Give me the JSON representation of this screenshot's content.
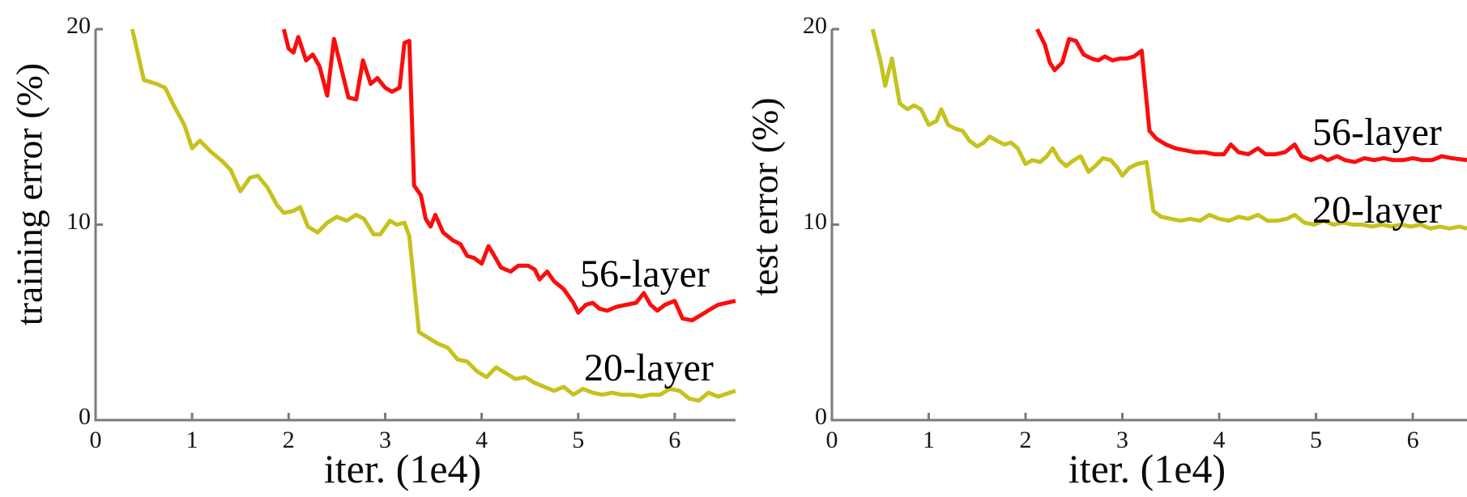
{
  "figure": {
    "background": "#ffffff"
  },
  "colors": {
    "axis": "#7b7b7b",
    "tick_label": "#14141c",
    "annotation": "#000000",
    "series_56_layer": "#fb0d0d",
    "series_20_layer": "#c6c21e"
  },
  "chart_data": [
    {
      "id": "training-error",
      "type": "line",
      "title": "",
      "xlabel": "iter. (1e4)",
      "ylabel": "training error (%)",
      "xlim": [
        0,
        6.63
      ],
      "ylim": [
        0,
        20
      ],
      "x_ticks": [
        0,
        1,
        2,
        3,
        4,
        5,
        6
      ],
      "x_tick_labels": [
        "0",
        "1",
        "2",
        "3",
        "4",
        "5",
        "6"
      ],
      "y_ticks": [
        0,
        10,
        20
      ],
      "y_tick_labels": [
        "0",
        "10",
        "20"
      ],
      "grid": false,
      "legend_position": "inline-annotations",
      "series": [
        {
          "name": "56-layer",
          "color": "#fb0d0d",
          "points": [
            [
              1.95,
              20
            ],
            [
              2.0,
              19.0
            ],
            [
              2.05,
              18.8
            ],
            [
              2.1,
              19.6
            ],
            [
              2.18,
              18.4
            ],
            [
              2.25,
              18.7
            ],
            [
              2.32,
              18.1
            ],
            [
              2.4,
              16.6
            ],
            [
              2.47,
              19.5
            ],
            [
              2.55,
              17.9
            ],
            [
              2.62,
              16.5
            ],
            [
              2.7,
              16.4
            ],
            [
              2.77,
              18.4
            ],
            [
              2.85,
              17.2
            ],
            [
              2.92,
              17.5
            ],
            [
              3.0,
              17.0
            ],
            [
              3.07,
              16.8
            ],
            [
              3.15,
              17.0
            ],
            [
              3.2,
              19.3
            ],
            [
              3.25,
              19.4
            ],
            [
              3.3,
              12.0
            ],
            [
              3.37,
              11.5
            ],
            [
              3.42,
              10.3
            ],
            [
              3.47,
              9.9
            ],
            [
              3.52,
              10.5
            ],
            [
              3.6,
              9.6
            ],
            [
              3.7,
              9.2
            ],
            [
              3.78,
              9.0
            ],
            [
              3.85,
              8.4
            ],
            [
              3.92,
              8.3
            ],
            [
              4.0,
              8.0
            ],
            [
              4.07,
              8.9
            ],
            [
              4.12,
              8.5
            ],
            [
              4.2,
              7.8
            ],
            [
              4.3,
              7.6
            ],
            [
              4.38,
              7.9
            ],
            [
              4.48,
              7.9
            ],
            [
              4.55,
              7.7
            ],
            [
              4.6,
              7.2
            ],
            [
              4.68,
              7.6
            ],
            [
              4.75,
              7.1
            ],
            [
              4.85,
              6.7
            ],
            [
              4.95,
              6.0
            ],
            [
              5.0,
              5.5
            ],
            [
              5.08,
              5.9
            ],
            [
              5.15,
              6.0
            ],
            [
              5.22,
              5.7
            ],
            [
              5.3,
              5.6
            ],
            [
              5.4,
              5.8
            ],
            [
              5.5,
              5.9
            ],
            [
              5.6,
              6.0
            ],
            [
              5.68,
              6.5
            ],
            [
              5.75,
              5.9
            ],
            [
              5.82,
              5.6
            ],
            [
              5.9,
              5.9
            ],
            [
              6.0,
              6.1
            ],
            [
              6.08,
              5.2
            ],
            [
              6.18,
              5.1
            ],
            [
              6.28,
              5.4
            ],
            [
              6.38,
              5.7
            ],
            [
              6.45,
              5.9
            ],
            [
              6.63,
              6.1
            ]
          ]
        },
        {
          "name": "20-layer",
          "color": "#c6c21e",
          "points": [
            [
              0.38,
              20
            ],
            [
              0.5,
              17.4
            ],
            [
              0.63,
              17.2
            ],
            [
              0.72,
              17.0
            ],
            [
              0.82,
              16.0
            ],
            [
              0.92,
              15.1
            ],
            [
              1.0,
              13.9
            ],
            [
              1.08,
              14.3
            ],
            [
              1.2,
              13.7
            ],
            [
              1.3,
              13.3
            ],
            [
              1.4,
              12.8
            ],
            [
              1.5,
              11.7
            ],
            [
              1.6,
              12.4
            ],
            [
              1.68,
              12.5
            ],
            [
              1.78,
              11.9
            ],
            [
              1.88,
              11.0
            ],
            [
              1.95,
              10.6
            ],
            [
              2.05,
              10.7
            ],
            [
              2.12,
              10.9
            ],
            [
              2.2,
              9.9
            ],
            [
              2.3,
              9.6
            ],
            [
              2.4,
              10.1
            ],
            [
              2.5,
              10.4
            ],
            [
              2.6,
              10.2
            ],
            [
              2.7,
              10.5
            ],
            [
              2.78,
              10.3
            ],
            [
              2.88,
              9.5
            ],
            [
              2.95,
              9.5
            ],
            [
              3.05,
              10.2
            ],
            [
              3.12,
              10.0
            ],
            [
              3.2,
              10.1
            ],
            [
              3.25,
              9.4
            ],
            [
              3.35,
              4.5
            ],
            [
              3.45,
              4.2
            ],
            [
              3.55,
              3.9
            ],
            [
              3.65,
              3.7
            ],
            [
              3.75,
              3.1
            ],
            [
              3.85,
              3.0
            ],
            [
              3.95,
              2.5
            ],
            [
              4.05,
              2.2
            ],
            [
              4.15,
              2.7
            ],
            [
              4.25,
              2.4
            ],
            [
              4.35,
              2.1
            ],
            [
              4.45,
              2.2
            ],
            [
              4.55,
              1.9
            ],
            [
              4.65,
              1.7
            ],
            [
              4.75,
              1.5
            ],
            [
              4.85,
              1.7
            ],
            [
              4.95,
              1.3
            ],
            [
              5.05,
              1.6
            ],
            [
              5.15,
              1.4
            ],
            [
              5.25,
              1.3
            ],
            [
              5.35,
              1.4
            ],
            [
              5.45,
              1.3
            ],
            [
              5.55,
              1.3
            ],
            [
              5.65,
              1.2
            ],
            [
              5.75,
              1.3
            ],
            [
              5.85,
              1.3
            ],
            [
              5.95,
              1.6
            ],
            [
              6.05,
              1.5
            ],
            [
              6.15,
              1.1
            ],
            [
              6.25,
              1.0
            ],
            [
              6.35,
              1.4
            ],
            [
              6.45,
              1.2
            ],
            [
              6.63,
              1.5
            ]
          ]
        }
      ]
    },
    {
      "id": "test-error",
      "type": "line",
      "title": "",
      "xlabel": "iter. (1e4)",
      "ylabel": "test error (%)",
      "xlim": [
        0,
        6.56
      ],
      "ylim": [
        0,
        20
      ],
      "x_ticks": [
        0,
        1,
        2,
        3,
        4,
        5,
        6
      ],
      "x_tick_labels": [
        "0",
        "1",
        "2",
        "3",
        "4",
        "5",
        "6"
      ],
      "y_ticks": [
        0,
        10,
        20
      ],
      "y_tick_labels": [
        "0",
        "10",
        "20"
      ],
      "grid": false,
      "legend_position": "inline-annotations",
      "series": [
        {
          "name": "56-layer",
          "color": "#fb0d0d",
          "points": [
            [
              2.12,
              20
            ],
            [
              2.2,
              19.2
            ],
            [
              2.25,
              18.3
            ],
            [
              2.3,
              17.9
            ],
            [
              2.38,
              18.3
            ],
            [
              2.45,
              19.5
            ],
            [
              2.52,
              19.4
            ],
            [
              2.6,
              18.7
            ],
            [
              2.68,
              18.5
            ],
            [
              2.75,
              18.4
            ],
            [
              2.82,
              18.6
            ],
            [
              2.9,
              18.4
            ],
            [
              2.98,
              18.5
            ],
            [
              3.05,
              18.5
            ],
            [
              3.12,
              18.6
            ],
            [
              3.2,
              18.9
            ],
            [
              3.28,
              14.8
            ],
            [
              3.35,
              14.4
            ],
            [
              3.45,
              14.1
            ],
            [
              3.55,
              13.9
            ],
            [
              3.65,
              13.8
            ],
            [
              3.75,
              13.7
            ],
            [
              3.85,
              13.7
            ],
            [
              3.95,
              13.6
            ],
            [
              4.05,
              13.6
            ],
            [
              4.12,
              14.1
            ],
            [
              4.2,
              13.7
            ],
            [
              4.3,
              13.6
            ],
            [
              4.4,
              13.9
            ],
            [
              4.48,
              13.6
            ],
            [
              4.58,
              13.6
            ],
            [
              4.68,
              13.7
            ],
            [
              4.78,
              14.1
            ],
            [
              4.85,
              13.5
            ],
            [
              4.95,
              13.3
            ],
            [
              5.05,
              13.5
            ],
            [
              5.12,
              13.3
            ],
            [
              5.22,
              13.5
            ],
            [
              5.3,
              13.3
            ],
            [
              5.4,
              13.2
            ],
            [
              5.5,
              13.4
            ],
            [
              5.6,
              13.3
            ],
            [
              5.7,
              13.4
            ],
            [
              5.8,
              13.3
            ],
            [
              5.9,
              13.3
            ],
            [
              6.0,
              13.4
            ],
            [
              6.1,
              13.3
            ],
            [
              6.2,
              13.3
            ],
            [
              6.3,
              13.5
            ],
            [
              6.4,
              13.4
            ],
            [
              6.56,
              13.3
            ]
          ]
        },
        {
          "name": "20-layer",
          "color": "#c6c21e",
          "points": [
            [
              0.42,
              20
            ],
            [
              0.5,
              18.4
            ],
            [
              0.55,
              17.1
            ],
            [
              0.62,
              18.5
            ],
            [
              0.7,
              16.2
            ],
            [
              0.78,
              15.9
            ],
            [
              0.85,
              16.1
            ],
            [
              0.92,
              15.9
            ],
            [
              1.0,
              15.1
            ],
            [
              1.08,
              15.3
            ],
            [
              1.13,
              15.9
            ],
            [
              1.2,
              15.1
            ],
            [
              1.28,
              14.9
            ],
            [
              1.35,
              14.8
            ],
            [
              1.42,
              14.3
            ],
            [
              1.5,
              14.0
            ],
            [
              1.57,
              14.2
            ],
            [
              1.63,
              14.5
            ],
            [
              1.7,
              14.3
            ],
            [
              1.78,
              14.1
            ],
            [
              1.85,
              14.2
            ],
            [
              1.92,
              13.9
            ],
            [
              2.0,
              13.1
            ],
            [
              2.07,
              13.3
            ],
            [
              2.15,
              13.2
            ],
            [
              2.22,
              13.5
            ],
            [
              2.28,
              13.9
            ],
            [
              2.35,
              13.3
            ],
            [
              2.42,
              13.0
            ],
            [
              2.5,
              13.3
            ],
            [
              2.57,
              13.5
            ],
            [
              2.65,
              12.7
            ],
            [
              2.72,
              13.0
            ],
            [
              2.8,
              13.4
            ],
            [
              2.88,
              13.3
            ],
            [
              2.95,
              12.9
            ],
            [
              3.0,
              12.5
            ],
            [
              3.07,
              12.9
            ],
            [
              3.15,
              13.1
            ],
            [
              3.25,
              13.2
            ],
            [
              3.32,
              10.7
            ],
            [
              3.4,
              10.4
            ],
            [
              3.5,
              10.3
            ],
            [
              3.6,
              10.2
            ],
            [
              3.7,
              10.3
            ],
            [
              3.8,
              10.2
            ],
            [
              3.9,
              10.5
            ],
            [
              4.0,
              10.3
            ],
            [
              4.1,
              10.2
            ],
            [
              4.2,
              10.4
            ],
            [
              4.3,
              10.3
            ],
            [
              4.4,
              10.5
            ],
            [
              4.5,
              10.2
            ],
            [
              4.6,
              10.2
            ],
            [
              4.7,
              10.3
            ],
            [
              4.78,
              10.5
            ],
            [
              4.88,
              10.1
            ],
            [
              4.98,
              10.0
            ],
            [
              5.08,
              10.2
            ],
            [
              5.18,
              10.0
            ],
            [
              5.28,
              10.1
            ],
            [
              5.38,
              10.0
            ],
            [
              5.48,
              10.0
            ],
            [
              5.58,
              9.9
            ],
            [
              5.68,
              10.0
            ],
            [
              5.78,
              9.9
            ],
            [
              5.88,
              10.0
            ],
            [
              5.98,
              9.9
            ],
            [
              6.08,
              10.0
            ],
            [
              6.18,
              9.8
            ],
            [
              6.28,
              9.9
            ],
            [
              6.38,
              9.8
            ],
            [
              6.48,
              9.9
            ],
            [
              6.56,
              9.8
            ]
          ]
        }
      ]
    }
  ]
}
